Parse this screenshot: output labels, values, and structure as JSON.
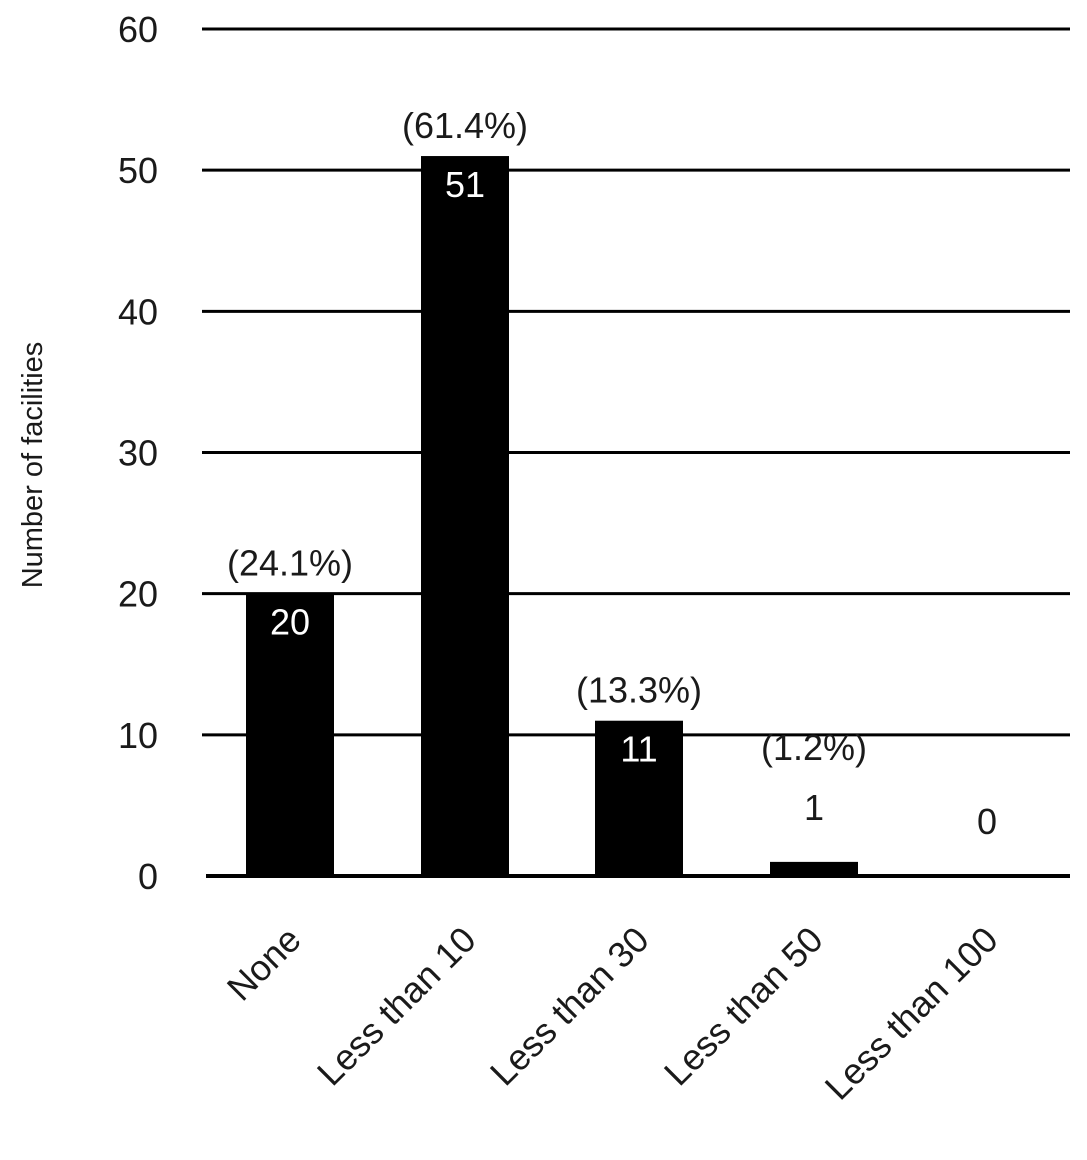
{
  "chart_data": {
    "type": "bar",
    "title": "",
    "xlabel": "",
    "ylabel": "Number of facilities",
    "ylim": [
      0,
      60
    ],
    "yticks": [
      0,
      10,
      20,
      30,
      40,
      50,
      60
    ],
    "grid": true,
    "categories": [
      "None",
      "Less than 10",
      "Less than 30",
      "Less than 50",
      "Less than 100"
    ],
    "values": [
      20,
      51,
      11,
      1,
      0
    ],
    "value_labels": [
      "20",
      "51",
      "11",
      "1",
      "0"
    ],
    "percent_labels": [
      "(24.1%)",
      "(61.4%)",
      "(13.3%)",
      "(1.2%)",
      ""
    ],
    "colors": {
      "bar": "#000000",
      "grid": "#000000",
      "text": "#1a1a1a",
      "inside_label": "#ffffff"
    }
  }
}
